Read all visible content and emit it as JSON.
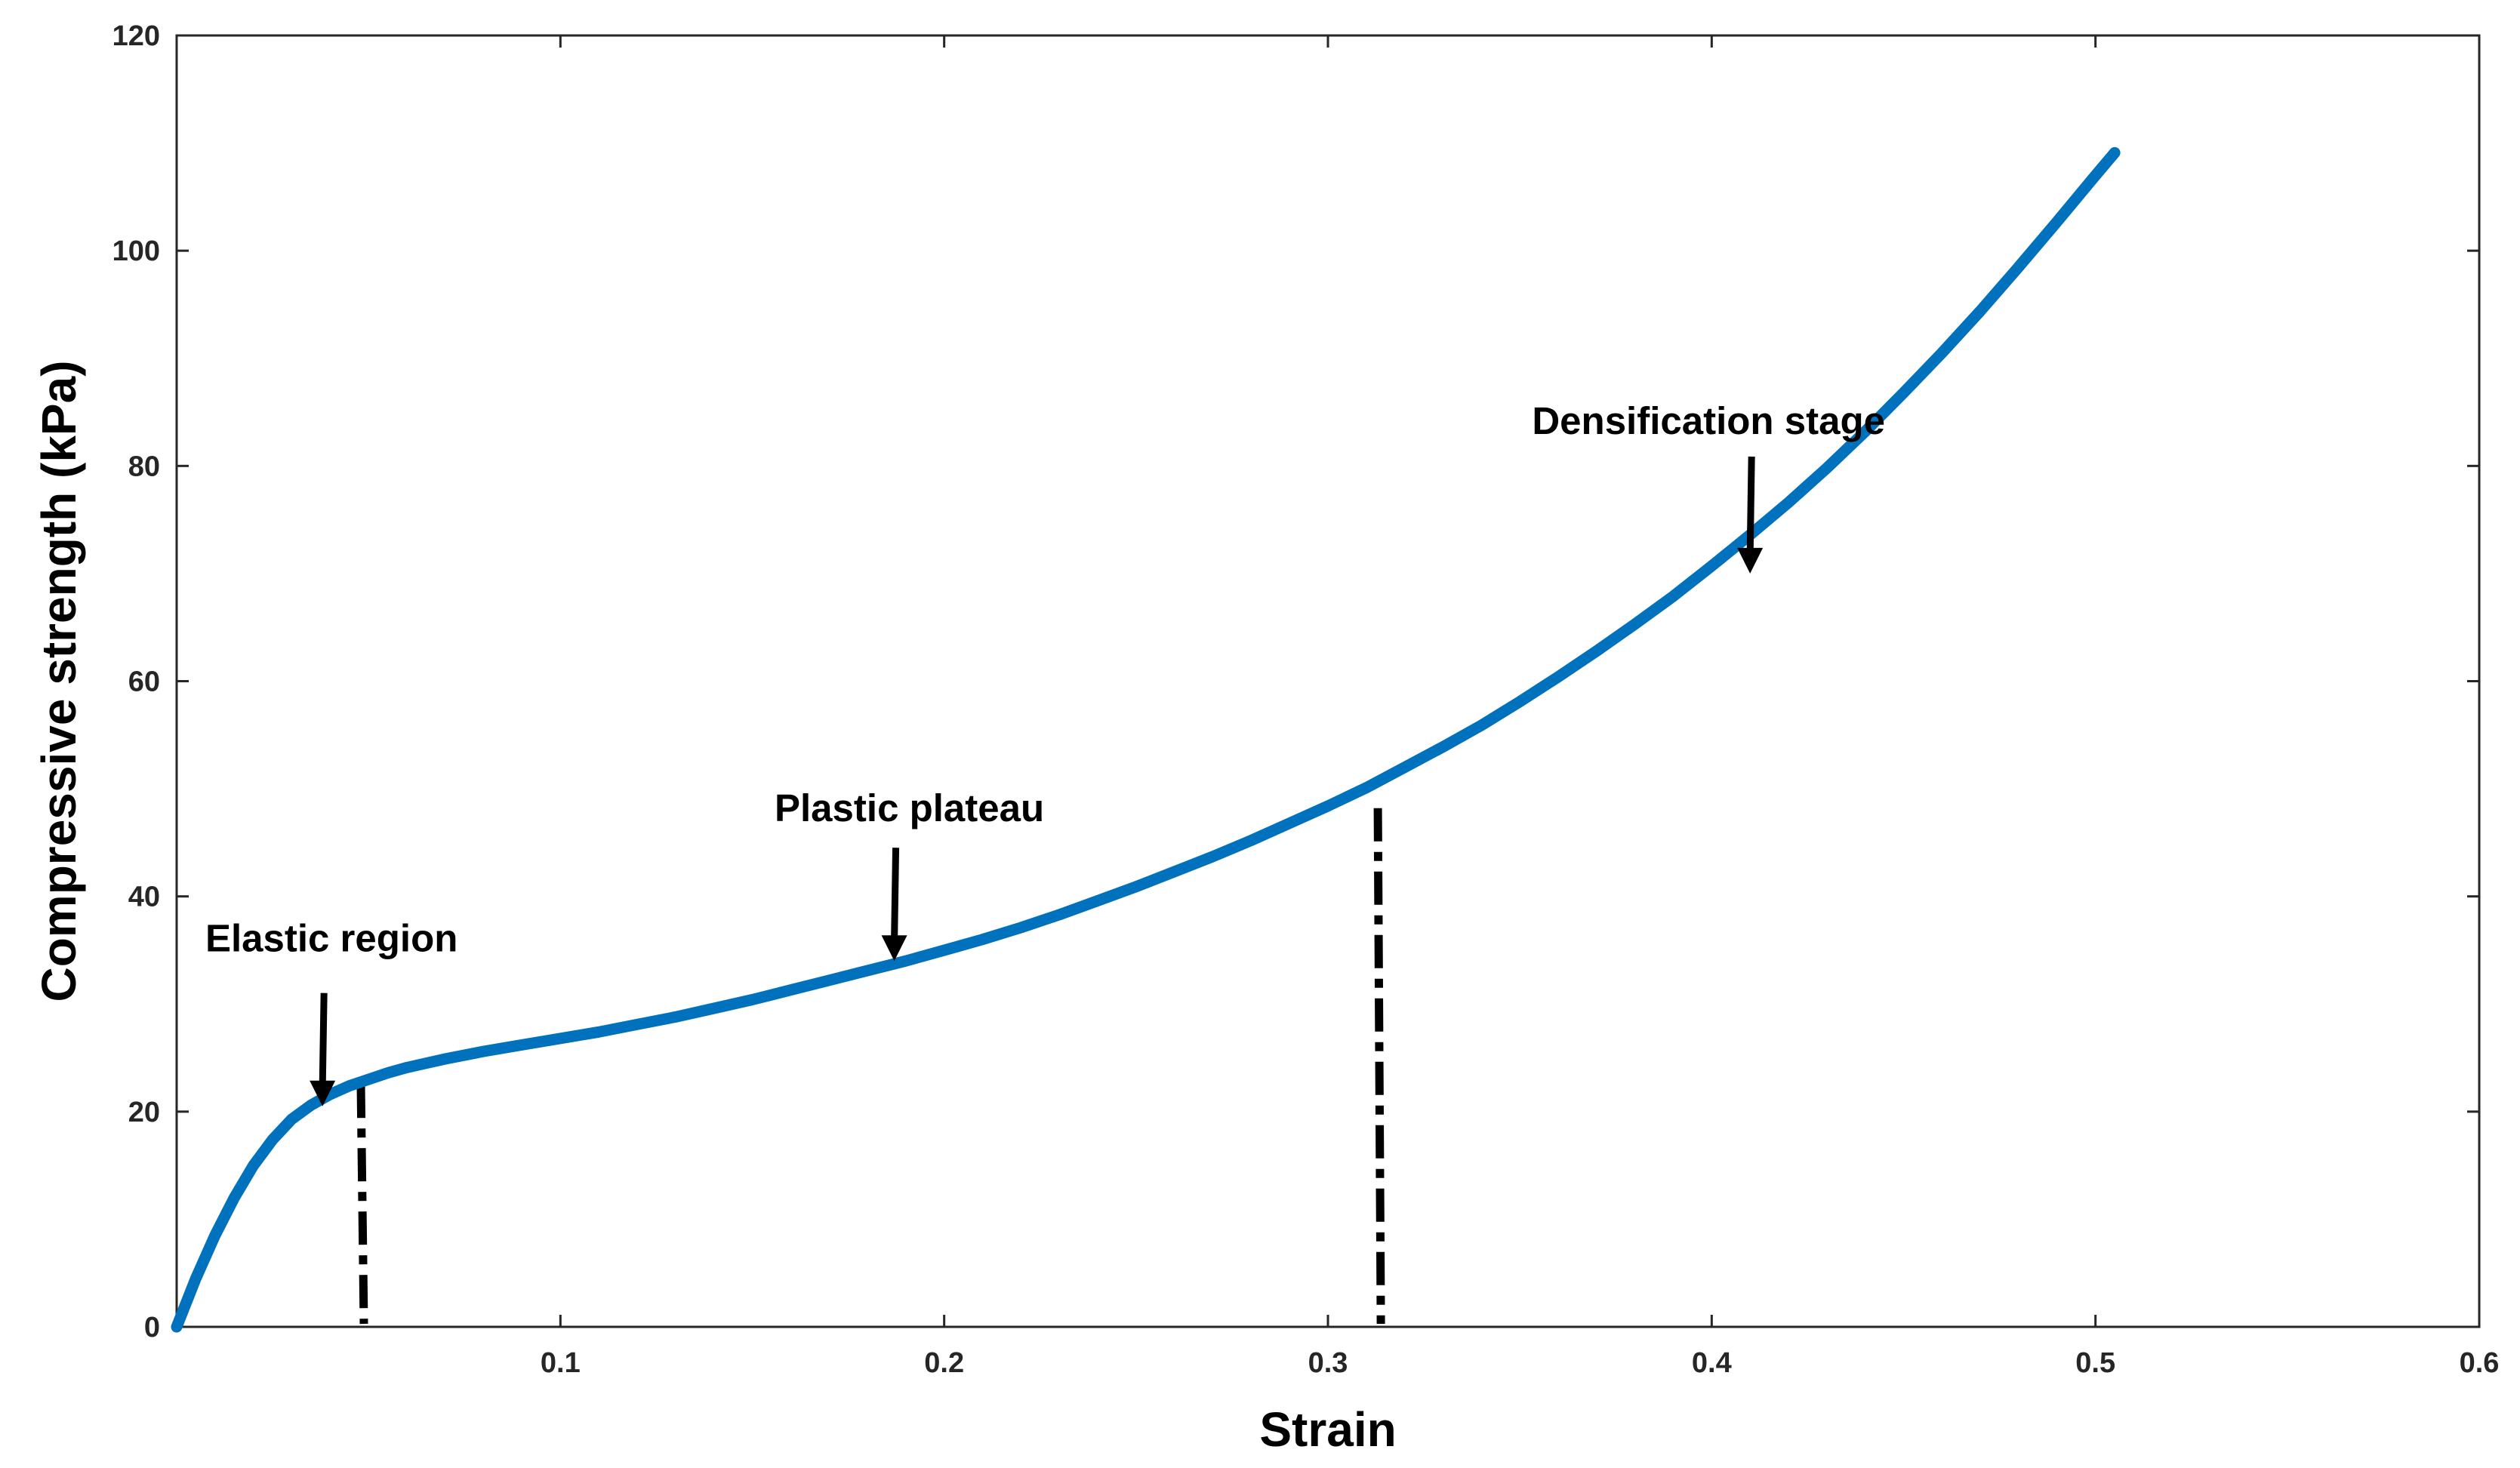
{
  "chart_data": {
    "type": "line",
    "xlabel": "Strain",
    "ylabel": "Compressive strength (kPa)",
    "xlim": [
      0,
      0.6
    ],
    "ylim": [
      0,
      120
    ],
    "xticks": [
      0.1,
      0.2,
      0.3,
      0.4,
      0.5,
      0.6
    ],
    "xtick_labels": [
      "0.1",
      "0.2",
      "0.3",
      "0.4",
      "0.5",
      "0.6"
    ],
    "yticks": [
      0,
      20,
      40,
      60,
      80,
      100,
      120
    ],
    "ytick_labels": [
      "0",
      "20",
      "40",
      "60",
      "80",
      "100",
      "120"
    ],
    "grid": false,
    "box": true,
    "series": [
      {
        "color": "#0072BD",
        "x": [
          0,
          0.005,
          0.01,
          0.015,
          0.02,
          0.025,
          0.03,
          0.035,
          0.04,
          0.045,
          0.05,
          0.055,
          0.06,
          0.065,
          0.07,
          0.08,
          0.09,
          0.1,
          0.11,
          0.12,
          0.13,
          0.14,
          0.15,
          0.16,
          0.17,
          0.18,
          0.19,
          0.2,
          0.21,
          0.22,
          0.23,
          0.24,
          0.25,
          0.26,
          0.27,
          0.28,
          0.29,
          0.3,
          0.31,
          0.32,
          0.33,
          0.34,
          0.35,
          0.36,
          0.37,
          0.38,
          0.39,
          0.4,
          0.41,
          0.42,
          0.43,
          0.44,
          0.45,
          0.46,
          0.47,
          0.48,
          0.49,
          0.5,
          0.505
        ],
        "y": [
          0,
          4.5,
          8.5,
          12,
          15,
          17.4,
          19.3,
          20.6,
          21.6,
          22.4,
          23,
          23.6,
          24.1,
          24.5,
          24.9,
          25.6,
          26.2,
          26.8,
          27.4,
          28.1,
          28.8,
          29.6,
          30.4,
          31.3,
          32.2,
          33.1,
          34,
          35,
          36,
          37.1,
          38.3,
          39.6,
          40.9,
          42.3,
          43.7,
          45.2,
          46.8,
          48.4,
          50.1,
          52,
          53.9,
          55.9,
          58.1,
          60.4,
          62.8,
          65.3,
          67.9,
          70.7,
          73.6,
          76.6,
          79.8,
          83.2,
          86.8,
          90.5,
          94.4,
          98.5,
          102.7,
          107,
          109.1
        ]
      }
    ],
    "boundaries": [
      {
        "style": "dash-dot",
        "x": 0.048,
        "y_top": 22.5
      },
      {
        "style": "dash-dot",
        "x": 0.313,
        "y_top": 48.2
      }
    ],
    "annotations": [
      {
        "text": "Elastic region",
        "arrow_to": [
          0.038,
          20.5
        ]
      },
      {
        "text": "Plastic plateau",
        "arrow_to": [
          0.187,
          34.0
        ]
      },
      {
        "text": "Densification stage",
        "arrow_to": [
          0.41,
          70.0
        ]
      }
    ]
  }
}
